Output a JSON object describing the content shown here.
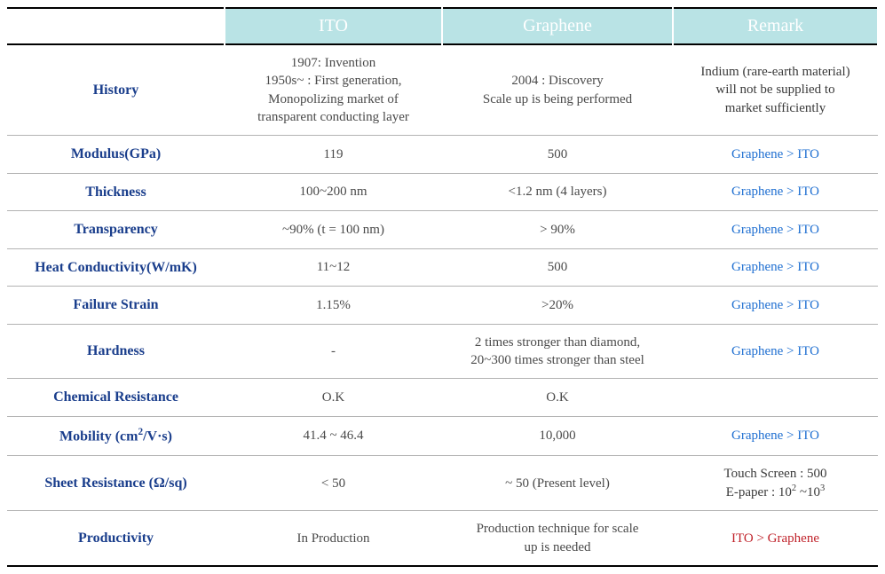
{
  "table": {
    "header": {
      "blank": "",
      "col1": "ITO",
      "col2": "Graphene",
      "col3": "Remark"
    },
    "header_bg": "#b9e3e5",
    "header_text_color": "#ffffff",
    "rowlabel_color": "#1a3e8c",
    "body_text_color": "#4a4a4a",
    "remark_blue": "#1f6fd1",
    "remark_red": "#c0232b",
    "border_thick": "#000000",
    "border_thin": "#b3b3b3",
    "rows": [
      {
        "label": "History",
        "ito_html": "1907: Invention<br>1950s~ : First generation,<br>Monopolizing market of<br>transparent conducting layer",
        "graphene_html": "2004 : Discovery<br>Scale up is being performed",
        "remark_html": "Indium (rare-earth material)<br>will not be supplied to<br>market sufficiently",
        "remark_class": "remark-dark"
      },
      {
        "label": "Modulus(GPa)",
        "ito_html": "119",
        "graphene_html": "500",
        "remark_html": "Graphene &gt; ITO",
        "remark_class": "remark-blue"
      },
      {
        "label": "Thickness",
        "ito_html": "100~200 nm",
        "graphene_html": "&lt;1.2 nm (4 layers)",
        "remark_html": "Graphene &gt; ITO",
        "remark_class": "remark-blue"
      },
      {
        "label": "Transparency",
        "ito_html": "~90% (t = 100 nm)",
        "graphene_html": "&gt; 90%",
        "remark_html": "Graphene &gt; ITO",
        "remark_class": "remark-blue"
      },
      {
        "label": "Heat Conductivity(W/mK)",
        "ito_html": "11~12",
        "graphene_html": "500",
        "remark_html": "Graphene &gt; ITO",
        "remark_class": "remark-blue"
      },
      {
        "label": "Failure Strain",
        "ito_html": "1.15%",
        "graphene_html": "&gt;20%",
        "remark_html": "Graphene &gt; ITO",
        "remark_class": "remark-blue"
      },
      {
        "label": "Hardness",
        "ito_html": "-",
        "graphene_html": "2 times stronger than diamond,<br>20~300 times stronger than steel",
        "remark_html": "Graphene &gt; ITO",
        "remark_class": "remark-blue"
      },
      {
        "label": "Chemical Resistance",
        "ito_html": "O.K",
        "graphene_html": "O.K",
        "remark_html": "",
        "remark_class": "remark-dark"
      },
      {
        "label_html": "Mobility (cm<sup>2</sup>/V·s)",
        "ito_html": "41.4 ~ 46.4",
        "graphene_html": "10,000",
        "remark_html": "Graphene &gt; ITO",
        "remark_class": "remark-blue"
      },
      {
        "label_html": "Sheet Resistance (Ω/sq)",
        "ito_html": "&lt; 50",
        "graphene_html": "~ 50 (Present level)",
        "remark_html": "Touch Screen : 500<br>E-paper : 10<sup>2</sup> ~10<sup>3</sup>",
        "remark_class": "remark-dark"
      },
      {
        "label": "Productivity",
        "ito_html": "In Production",
        "graphene_html": "Production technique for scale<br>up is needed",
        "remark_html": "ITO &gt; Graphene",
        "remark_class": "remark-red"
      }
    ]
  }
}
